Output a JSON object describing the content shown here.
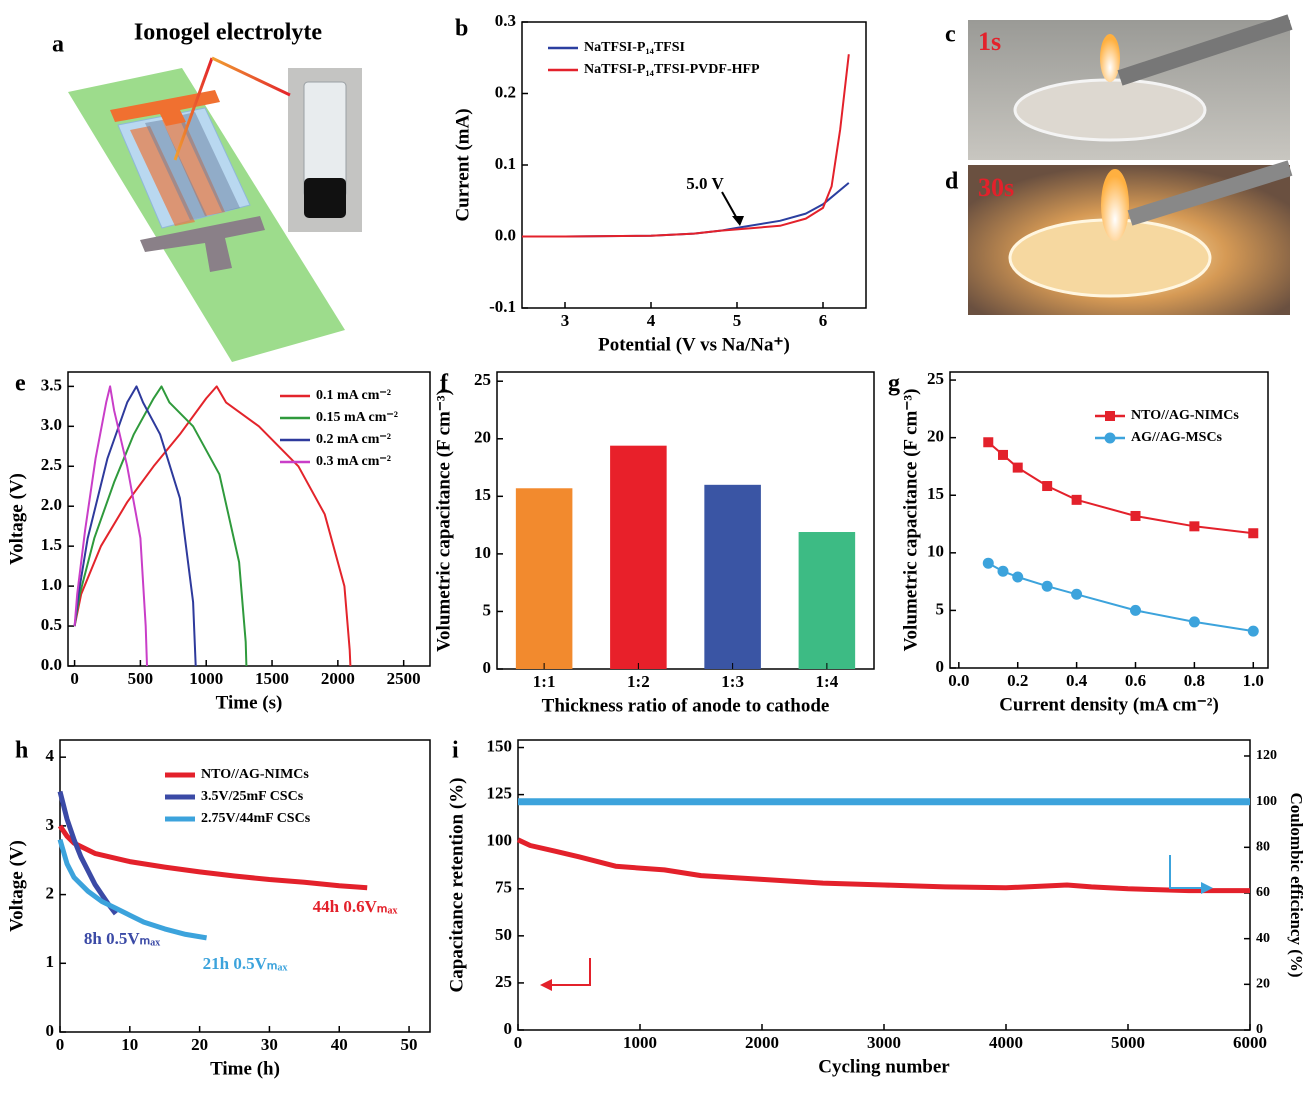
{
  "panels": {
    "a": {
      "letter": "a",
      "title": "Ionogel electrolyte"
    },
    "c": {
      "letter": "c",
      "caption": "1s"
    },
    "d": {
      "letter": "d",
      "caption": "30s"
    }
  },
  "chart_data": [
    {
      "type": "line",
      "letter": "b",
      "xlabel": "Potential (V vs Na/Na⁺)",
      "ylabel": "Current (mA)",
      "xlim": [
        2.5,
        6.5
      ],
      "xticks": [
        3,
        4,
        5,
        6
      ],
      "ylim": [
        -0.1,
        0.3
      ],
      "yticks": [
        -0.1,
        {
          "value": 0,
          "label": "0.0"
        },
        0.1,
        0.2,
        0.3
      ],
      "legend": "upper left",
      "annotations": [
        {
          "text": "5.0 V",
          "color": "#000000"
        }
      ],
      "series": [
        {
          "name": "NaTFSI-P₁₄TFSI",
          "color": "#2b3fa0",
          "x": [
            2.5,
            3,
            4,
            4.5,
            4.8,
            5,
            5.5,
            5.8,
            6.0,
            6.1,
            6.3
          ],
          "values": [
            0,
            0,
            0.001,
            0.004,
            0.008,
            0.012,
            0.022,
            0.032,
            0.045,
            0.055,
            0.075
          ]
        },
        {
          "name": "NaTFSI-P₁₄TFSI-PVDF-HFP",
          "color": "#e3212b",
          "x": [
            2.5,
            3,
            4,
            4.5,
            4.8,
            5,
            5.5,
            5.8,
            6.0,
            6.1,
            6.2,
            6.3
          ],
          "values": [
            0,
            0,
            0.001,
            0.004,
            0.008,
            0.01,
            0.015,
            0.025,
            0.04,
            0.07,
            0.15,
            0.255
          ]
        }
      ]
    },
    {
      "type": "line",
      "letter": "e",
      "xlabel": "Time (s)",
      "ylabel": "Voltage (V)",
      "xlim": [
        -50,
        2700
      ],
      "xticks": [
        0,
        500,
        1000,
        1500,
        2000,
        2500
      ],
      "ylim": [
        0,
        3.68
      ],
      "yticks": [
        {
          "value": 0,
          "label": "0.0"
        },
        0.5,
        {
          "value": 1,
          "label": "1.0"
        },
        1.5,
        {
          "value": 2,
          "label": "2.0"
        },
        2.5,
        {
          "value": 3,
          "label": "3.0"
        },
        3.5
      ],
      "legend": "upper right",
      "series": [
        {
          "name": "0.1 mA cm⁻²",
          "color": "#e3242b",
          "x": [
            0,
            50,
            200,
            400,
            600,
            800,
            1000,
            1080,
            1150,
            1400,
            1700,
            1900,
            2050,
            2090,
            2095
          ],
          "values": [
            0.5,
            0.9,
            1.5,
            2.05,
            2.5,
            2.9,
            3.35,
            3.5,
            3.3,
            3.0,
            2.5,
            1.9,
            1.0,
            0.2,
            0
          ]
        },
        {
          "name": "0.15 mA cm⁻²",
          "color": "#2f9a3c",
          "x": [
            0,
            40,
            150,
            300,
            450,
            600,
            660,
            720,
            900,
            1100,
            1250,
            1300,
            1305
          ],
          "values": [
            0.5,
            0.9,
            1.6,
            2.3,
            2.9,
            3.35,
            3.5,
            3.3,
            3.0,
            2.4,
            1.3,
            0.3,
            0
          ]
        },
        {
          "name": "0.2 mA cm⁻²",
          "color": "#2e3a9c",
          "x": [
            0,
            30,
            100,
            250,
            400,
            470,
            520,
            650,
            800,
            900,
            920
          ],
          "values": [
            0.5,
            0.9,
            1.6,
            2.6,
            3.3,
            3.5,
            3.3,
            2.9,
            2.1,
            0.8,
            0
          ]
        },
        {
          "name": "0.3 mA cm⁻²",
          "color": "#c93ec8",
          "x": [
            0,
            20,
            80,
            160,
            240,
            270,
            300,
            400,
            500,
            540,
            550
          ],
          "values": [
            0.5,
            0.9,
            1.7,
            2.6,
            3.3,
            3.5,
            3.2,
            2.5,
            1.6,
            0.5,
            0
          ]
        }
      ]
    },
    {
      "type": "bar",
      "letter": "f",
      "xlabel": "Thickness ratio of anode to cathode",
      "ylabel": "Volumetric capacitance (F cm⁻³)",
      "categories": [
        "1:1",
        "1:2",
        "1:3",
        "1:4"
      ],
      "values": [
        15.7,
        19.4,
        16.0,
        11.9
      ],
      "colors": [
        "#f28a2e",
        "#e8202a",
        "#3a55a4",
        "#3dbb84"
      ],
      "ylim": [
        0,
        25.8
      ],
      "yticks": [
        0,
        5,
        10,
        15,
        20,
        25
      ]
    },
    {
      "type": "line",
      "letter": "g",
      "xlabel": "Current density (mA cm⁻²)",
      "ylabel": "Volumetric capacitance (F cm⁻³)",
      "xlim": [
        -0.03,
        1.05
      ],
      "xticks": [
        {
          "value": 0,
          "label": "0.0"
        },
        0.2,
        0.4,
        0.6,
        0.8,
        {
          "value": 1,
          "label": "1.0"
        }
      ],
      "ylim": [
        0,
        25.7
      ],
      "yticks": [
        0,
        5,
        10,
        15,
        20,
        25
      ],
      "legend": "upper right",
      "series": [
        {
          "name": "NTO//AG-NIMCs",
          "color": "#e3212b",
          "marker": "square",
          "x": [
            0.1,
            0.15,
            0.2,
            0.3,
            0.4,
            0.6,
            0.8,
            1.0
          ],
          "values": [
            19.6,
            18.5,
            17.4,
            15.8,
            14.6,
            13.2,
            12.3,
            11.7
          ]
        },
        {
          "name": "AG//AG-MSCs",
          "color": "#3ca3dc",
          "marker": "circle",
          "x": [
            0.1,
            0.15,
            0.2,
            0.3,
            0.4,
            0.6,
            0.8,
            1.0
          ],
          "values": [
            9.1,
            8.4,
            7.9,
            7.1,
            6.4,
            5.0,
            4.0,
            3.2
          ]
        }
      ]
    },
    {
      "type": "line",
      "letter": "h",
      "xlabel": "Time (h)",
      "ylabel": "Voltage (V)",
      "xlim": [
        0,
        53
      ],
      "xticks": [
        0,
        10,
        20,
        30,
        40,
        50
      ],
      "ylim": [
        0,
        4.25
      ],
      "yticks": [
        0,
        1,
        2,
        3,
        4
      ],
      "legend": "upper center",
      "annotations": [
        {
          "text": "44h 0.6Vₘₐₓ",
          "color": "#e3212b"
        },
        {
          "text": "8h 0.5Vₘₐₓ",
          "color": "#3b4aa6"
        },
        {
          "text": "21h 0.5Vₘₐₓ",
          "color": "#3ca3dc"
        }
      ],
      "series": [
        {
          "name": "NTO//AG-NIMCs",
          "color": "#e3212b",
          "x": [
            0,
            1,
            2,
            5,
            10,
            15,
            20,
            25,
            30,
            35,
            40,
            44
          ],
          "values": [
            3.0,
            2.85,
            2.75,
            2.6,
            2.48,
            2.4,
            2.33,
            2.27,
            2.22,
            2.18,
            2.13,
            2.1
          ]
        },
        {
          "name": "3.5V/25mF  CSCs",
          "color": "#3b4aa6",
          "x": [
            0,
            1,
            2,
            3,
            4,
            5,
            6,
            7,
            8
          ],
          "values": [
            3.5,
            3.1,
            2.8,
            2.55,
            2.35,
            2.15,
            2.0,
            1.85,
            1.72
          ]
        },
        {
          "name": "2.75V/44mF  CSCs",
          "color": "#3ca3dc",
          "x": [
            0,
            1,
            2,
            4,
            6,
            8,
            10,
            12,
            15,
            18,
            21
          ],
          "values": [
            2.8,
            2.45,
            2.25,
            2.05,
            1.9,
            1.8,
            1.7,
            1.6,
            1.5,
            1.42,
            1.37
          ]
        }
      ]
    },
    {
      "type": "line",
      "letter": "i",
      "xlabel": "Cycling number",
      "ylabel": "Capacitance retention (%)",
      "y2label": "Coulombic efficiency (%)",
      "xlim": [
        0,
        6000
      ],
      "xticks": [
        0,
        1000,
        2000,
        3000,
        4000,
        5000,
        6000
      ],
      "ylim": [
        0,
        154
      ],
      "yticks": [
        0,
        25,
        50,
        75,
        100,
        125,
        150
      ],
      "y2lim": [
        0,
        127
      ],
      "y2ticks": [
        0,
        20,
        40,
        60,
        80,
        100,
        120
      ],
      "series": [
        {
          "color": "#e3212b",
          "x": [
            0,
            100,
            300,
            500,
            800,
            1000,
            1200,
            1500,
            2000,
            2500,
            3000,
            3500,
            4000,
            4500,
            4700,
            5000,
            5500,
            6000
          ],
          "values": [
            101,
            98,
            95,
            92,
            87,
            86,
            85,
            82,
            80,
            78,
            77,
            76,
            75.5,
            77,
            76,
            75,
            74,
            74
          ]
        },
        {
          "color": "#3ca3dc",
          "axis": "y2",
          "x": [
            0,
            1000,
            2000,
            3000,
            4000,
            5000,
            6000
          ],
          "values": [
            100,
            100,
            100,
            100,
            100,
            100,
            100
          ]
        }
      ]
    }
  ]
}
